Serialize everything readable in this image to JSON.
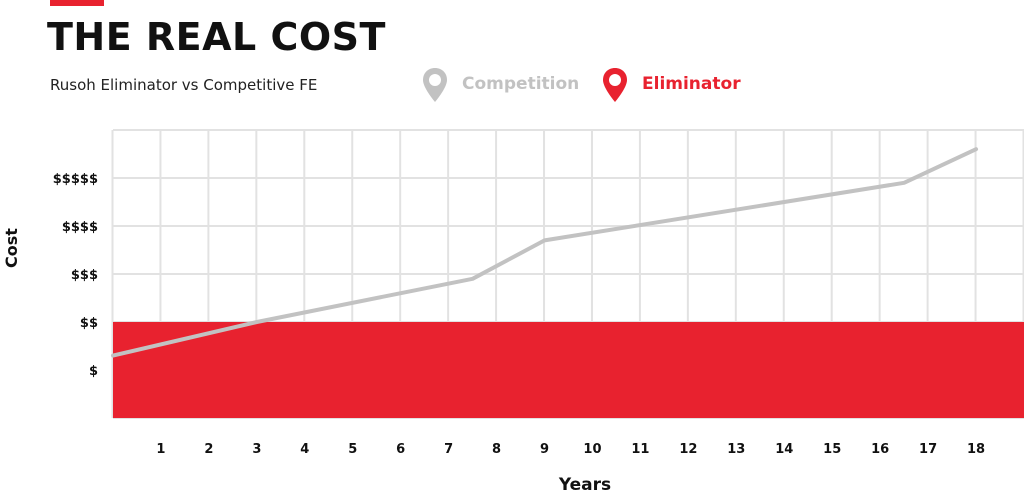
{
  "header": {
    "title": "THE REAL COST",
    "subtitle": "Rusoh Eliminator vs Competitive FE"
  },
  "colors": {
    "accent_red": "#e8222f",
    "competition_gray": "#c2c2c2",
    "grid": "#e2e2e2"
  },
  "legend": [
    {
      "name": "Competition",
      "color": "#c2c2c2",
      "icon": "map-pin-icon"
    },
    {
      "name": "Eliminator",
      "color": "#e8222f",
      "icon": "map-pin-icon"
    }
  ],
  "chart_data": {
    "type": "line",
    "xlabel": "Years",
    "ylabel": "Cost",
    "x_ticks": [
      1,
      2,
      3,
      4,
      5,
      6,
      7,
      8,
      9,
      10,
      11,
      12,
      13,
      14,
      15,
      16,
      17,
      18
    ],
    "y_ticks": [
      "$",
      "$$",
      "$$$",
      "$$$$",
      "$$$$$"
    ],
    "xlim": [
      0,
      19
    ],
    "ylim": [
      0,
      6
    ],
    "grid": true,
    "legend_position": "top",
    "series": [
      {
        "name": "Competition",
        "color": "#c2c2c2",
        "points": [
          [
            0,
            1.3
          ],
          [
            3,
            2.0
          ],
          [
            7.5,
            2.9
          ],
          [
            9,
            3.7
          ],
          [
            16.5,
            4.9
          ],
          [
            18,
            5.6
          ]
        ]
      },
      {
        "name": "Eliminator",
        "color": "#e8222f",
        "kind": "flat-area",
        "value": 2.0,
        "x_range": [
          0,
          19
        ]
      }
    ]
  }
}
